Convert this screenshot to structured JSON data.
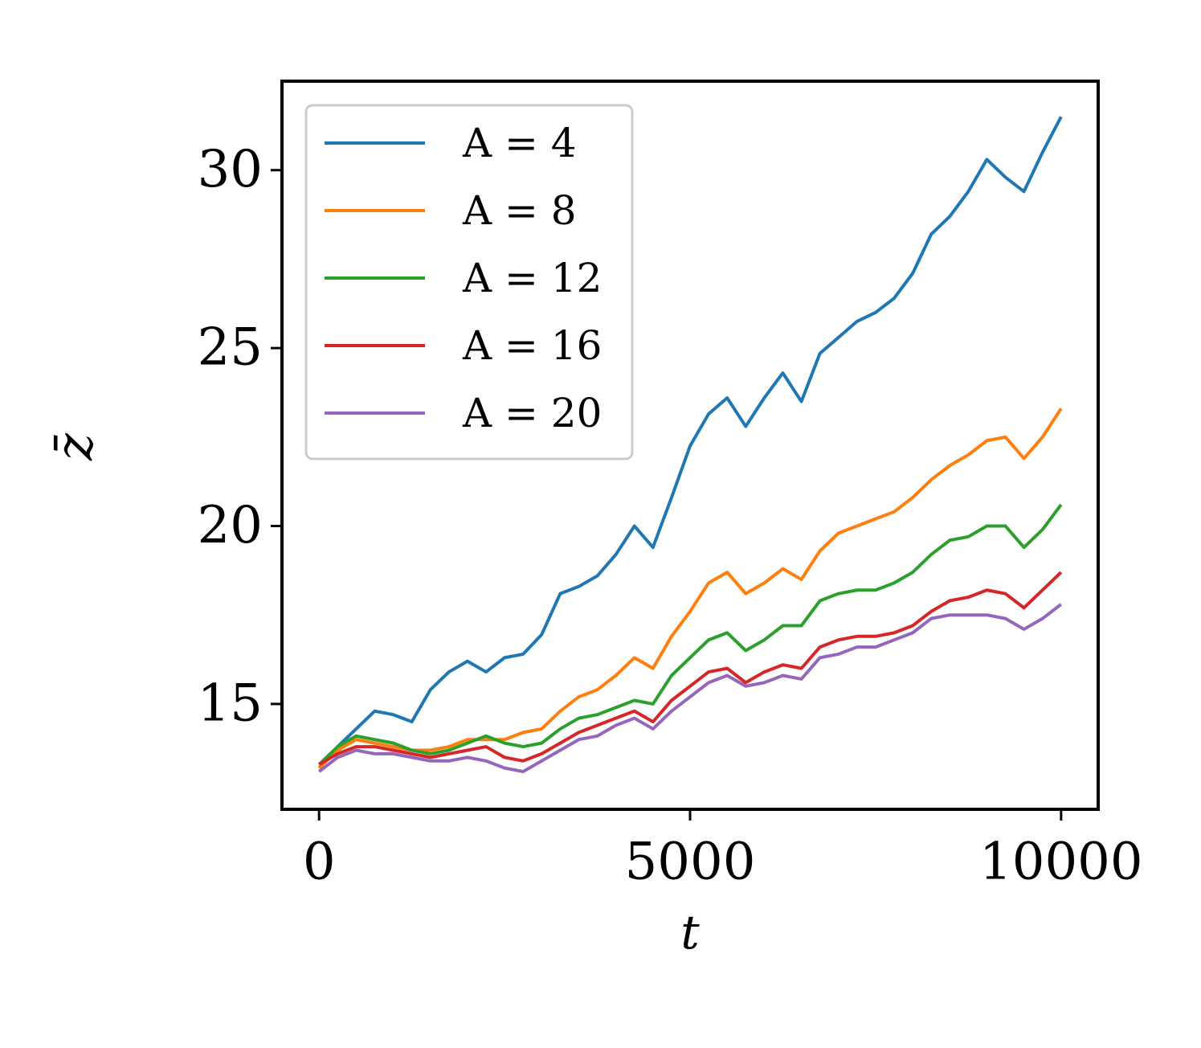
{
  "chart_data": {
    "type": "line",
    "xlabel": "t",
    "ylabel": "z̄",
    "x": [
      0,
      250,
      500,
      750,
      1000,
      1250,
      1500,
      1750,
      2000,
      2250,
      2500,
      2750,
      3000,
      3250,
      3500,
      3750,
      4000,
      4250,
      4500,
      4750,
      5000,
      5250,
      5500,
      5750,
      6000,
      6250,
      6500,
      6750,
      7000,
      7250,
      7500,
      7750,
      8000,
      8250,
      8500,
      8750,
      9000,
      9250,
      9500,
      9750,
      10000
    ],
    "series": [
      {
        "name": "A = 4",
        "color": "#1f77b4",
        "values": [
          13.2,
          13.8,
          14.3,
          14.8,
          14.7,
          14.5,
          15.4,
          15.9,
          16.2,
          15.9,
          16.3,
          16.4,
          16.95,
          18.1,
          18.3,
          18.6,
          19.2,
          20.0,
          19.4,
          20.8,
          22.25,
          23.15,
          23.6,
          22.8,
          23.6,
          24.3,
          23.5,
          24.85,
          25.3,
          25.75,
          26.0,
          26.4,
          27.1,
          28.2,
          28.7,
          29.4,
          30.3,
          29.8,
          29.4,
          30.5,
          31.5
        ]
      },
      {
        "name": "A = 8",
        "color": "#ff7f0e",
        "values": [
          13.2,
          13.7,
          14.0,
          13.9,
          13.8,
          13.7,
          13.7,
          13.8,
          14.0,
          14.0,
          14.0,
          14.2,
          14.3,
          14.8,
          15.2,
          15.4,
          15.8,
          16.3,
          16.0,
          16.9,
          17.6,
          18.4,
          18.7,
          18.1,
          18.4,
          18.8,
          18.5,
          19.3,
          19.8,
          20.0,
          20.2,
          20.4,
          20.8,
          21.3,
          21.7,
          22.0,
          22.4,
          22.5,
          21.9,
          22.5,
          23.3
        ]
      },
      {
        "name": "A = 12",
        "color": "#2ca02c",
        "values": [
          13.3,
          13.8,
          14.1,
          14.0,
          13.9,
          13.7,
          13.6,
          13.7,
          13.9,
          14.1,
          13.9,
          13.8,
          13.9,
          14.3,
          14.6,
          14.7,
          14.9,
          15.1,
          15.0,
          15.8,
          16.3,
          16.8,
          17.0,
          16.5,
          16.8,
          17.2,
          17.2,
          17.9,
          18.1,
          18.2,
          18.2,
          18.4,
          18.7,
          19.2,
          19.6,
          19.7,
          20.0,
          20.0,
          19.4,
          19.9,
          20.6
        ]
      },
      {
        "name": "A = 16",
        "color": "#d62728",
        "values": [
          13.3,
          13.6,
          13.8,
          13.8,
          13.7,
          13.6,
          13.5,
          13.6,
          13.7,
          13.8,
          13.5,
          13.4,
          13.6,
          13.9,
          14.2,
          14.4,
          14.6,
          14.8,
          14.5,
          15.1,
          15.5,
          15.9,
          16.0,
          15.6,
          15.9,
          16.1,
          16.0,
          16.6,
          16.8,
          16.9,
          16.9,
          17.0,
          17.2,
          17.6,
          17.9,
          18.0,
          18.2,
          18.1,
          17.7,
          18.2,
          18.7
        ]
      },
      {
        "name": "A = 20",
        "color": "#9467bd",
        "values": [
          13.1,
          13.5,
          13.7,
          13.6,
          13.6,
          13.5,
          13.4,
          13.4,
          13.5,
          13.4,
          13.2,
          13.1,
          13.4,
          13.7,
          14.0,
          14.1,
          14.4,
          14.6,
          14.3,
          14.8,
          15.2,
          15.6,
          15.8,
          15.5,
          15.6,
          15.8,
          15.7,
          16.3,
          16.4,
          16.6,
          16.6,
          16.8,
          17.0,
          17.4,
          17.5,
          17.5,
          17.5,
          17.4,
          17.1,
          17.4,
          17.8
        ]
      }
    ],
    "xlim": [
      -500,
      10500
    ],
    "ylim": [
      12.04,
      32.5
    ],
    "xticks": [
      0,
      5000,
      10000
    ],
    "yticks": [
      15,
      20,
      25,
      30
    ],
    "legend": "upper left"
  }
}
